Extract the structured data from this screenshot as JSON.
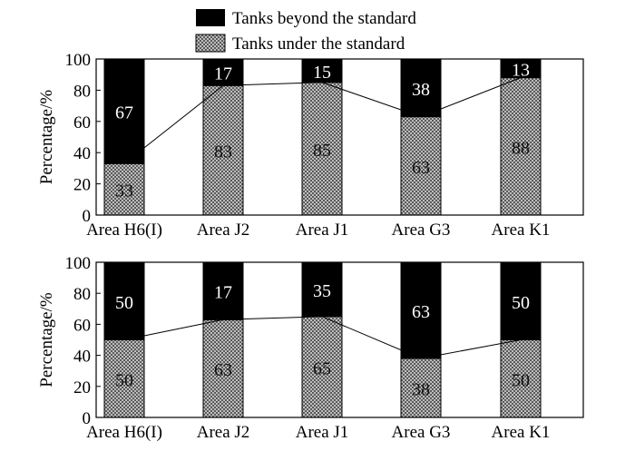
{
  "legend": {
    "beyond_label": "Tanks beyond the standard",
    "under_label": "Tanks under the standard",
    "beyond_color": "#000000",
    "under_pattern": "gray-checker"
  },
  "chart_data": [
    {
      "type": "bar",
      "stacked": true,
      "categories": [
        "Area H6(I)",
        "Area J2",
        "Area J1",
        "Area G3",
        "Area K1"
      ],
      "series": [
        {
          "name": "Tanks under the standard",
          "values": [
            33,
            83,
            85,
            63,
            88
          ]
        },
        {
          "name": "Tanks beyond the standard",
          "values": [
            67,
            17,
            15,
            38,
            13
          ]
        }
      ],
      "ylabel": "Percentage/%",
      "ylim": [
        0,
        100
      ],
      "yticks": [
        0,
        20,
        40,
        60,
        80,
        100
      ],
      "line_connects": "top of under-standard segments",
      "grid": false
    },
    {
      "type": "bar",
      "stacked": true,
      "categories": [
        "Area H6(I)",
        "Area J2",
        "Area J1",
        "Area G3",
        "Area K1"
      ],
      "series": [
        {
          "name": "Tanks under the standard",
          "values": [
            50,
            63,
            65,
            38,
            50
          ]
        },
        {
          "name": "Tanks beyond the standard",
          "values": [
            50,
            17,
            35,
            63,
            50
          ]
        }
      ],
      "ylabel": "Percentage/%",
      "ylim": [
        0,
        100
      ],
      "yticks": [
        0,
        20,
        40,
        60,
        80,
        100
      ],
      "line_connects": "top of under-standard segments",
      "grid": false
    }
  ]
}
